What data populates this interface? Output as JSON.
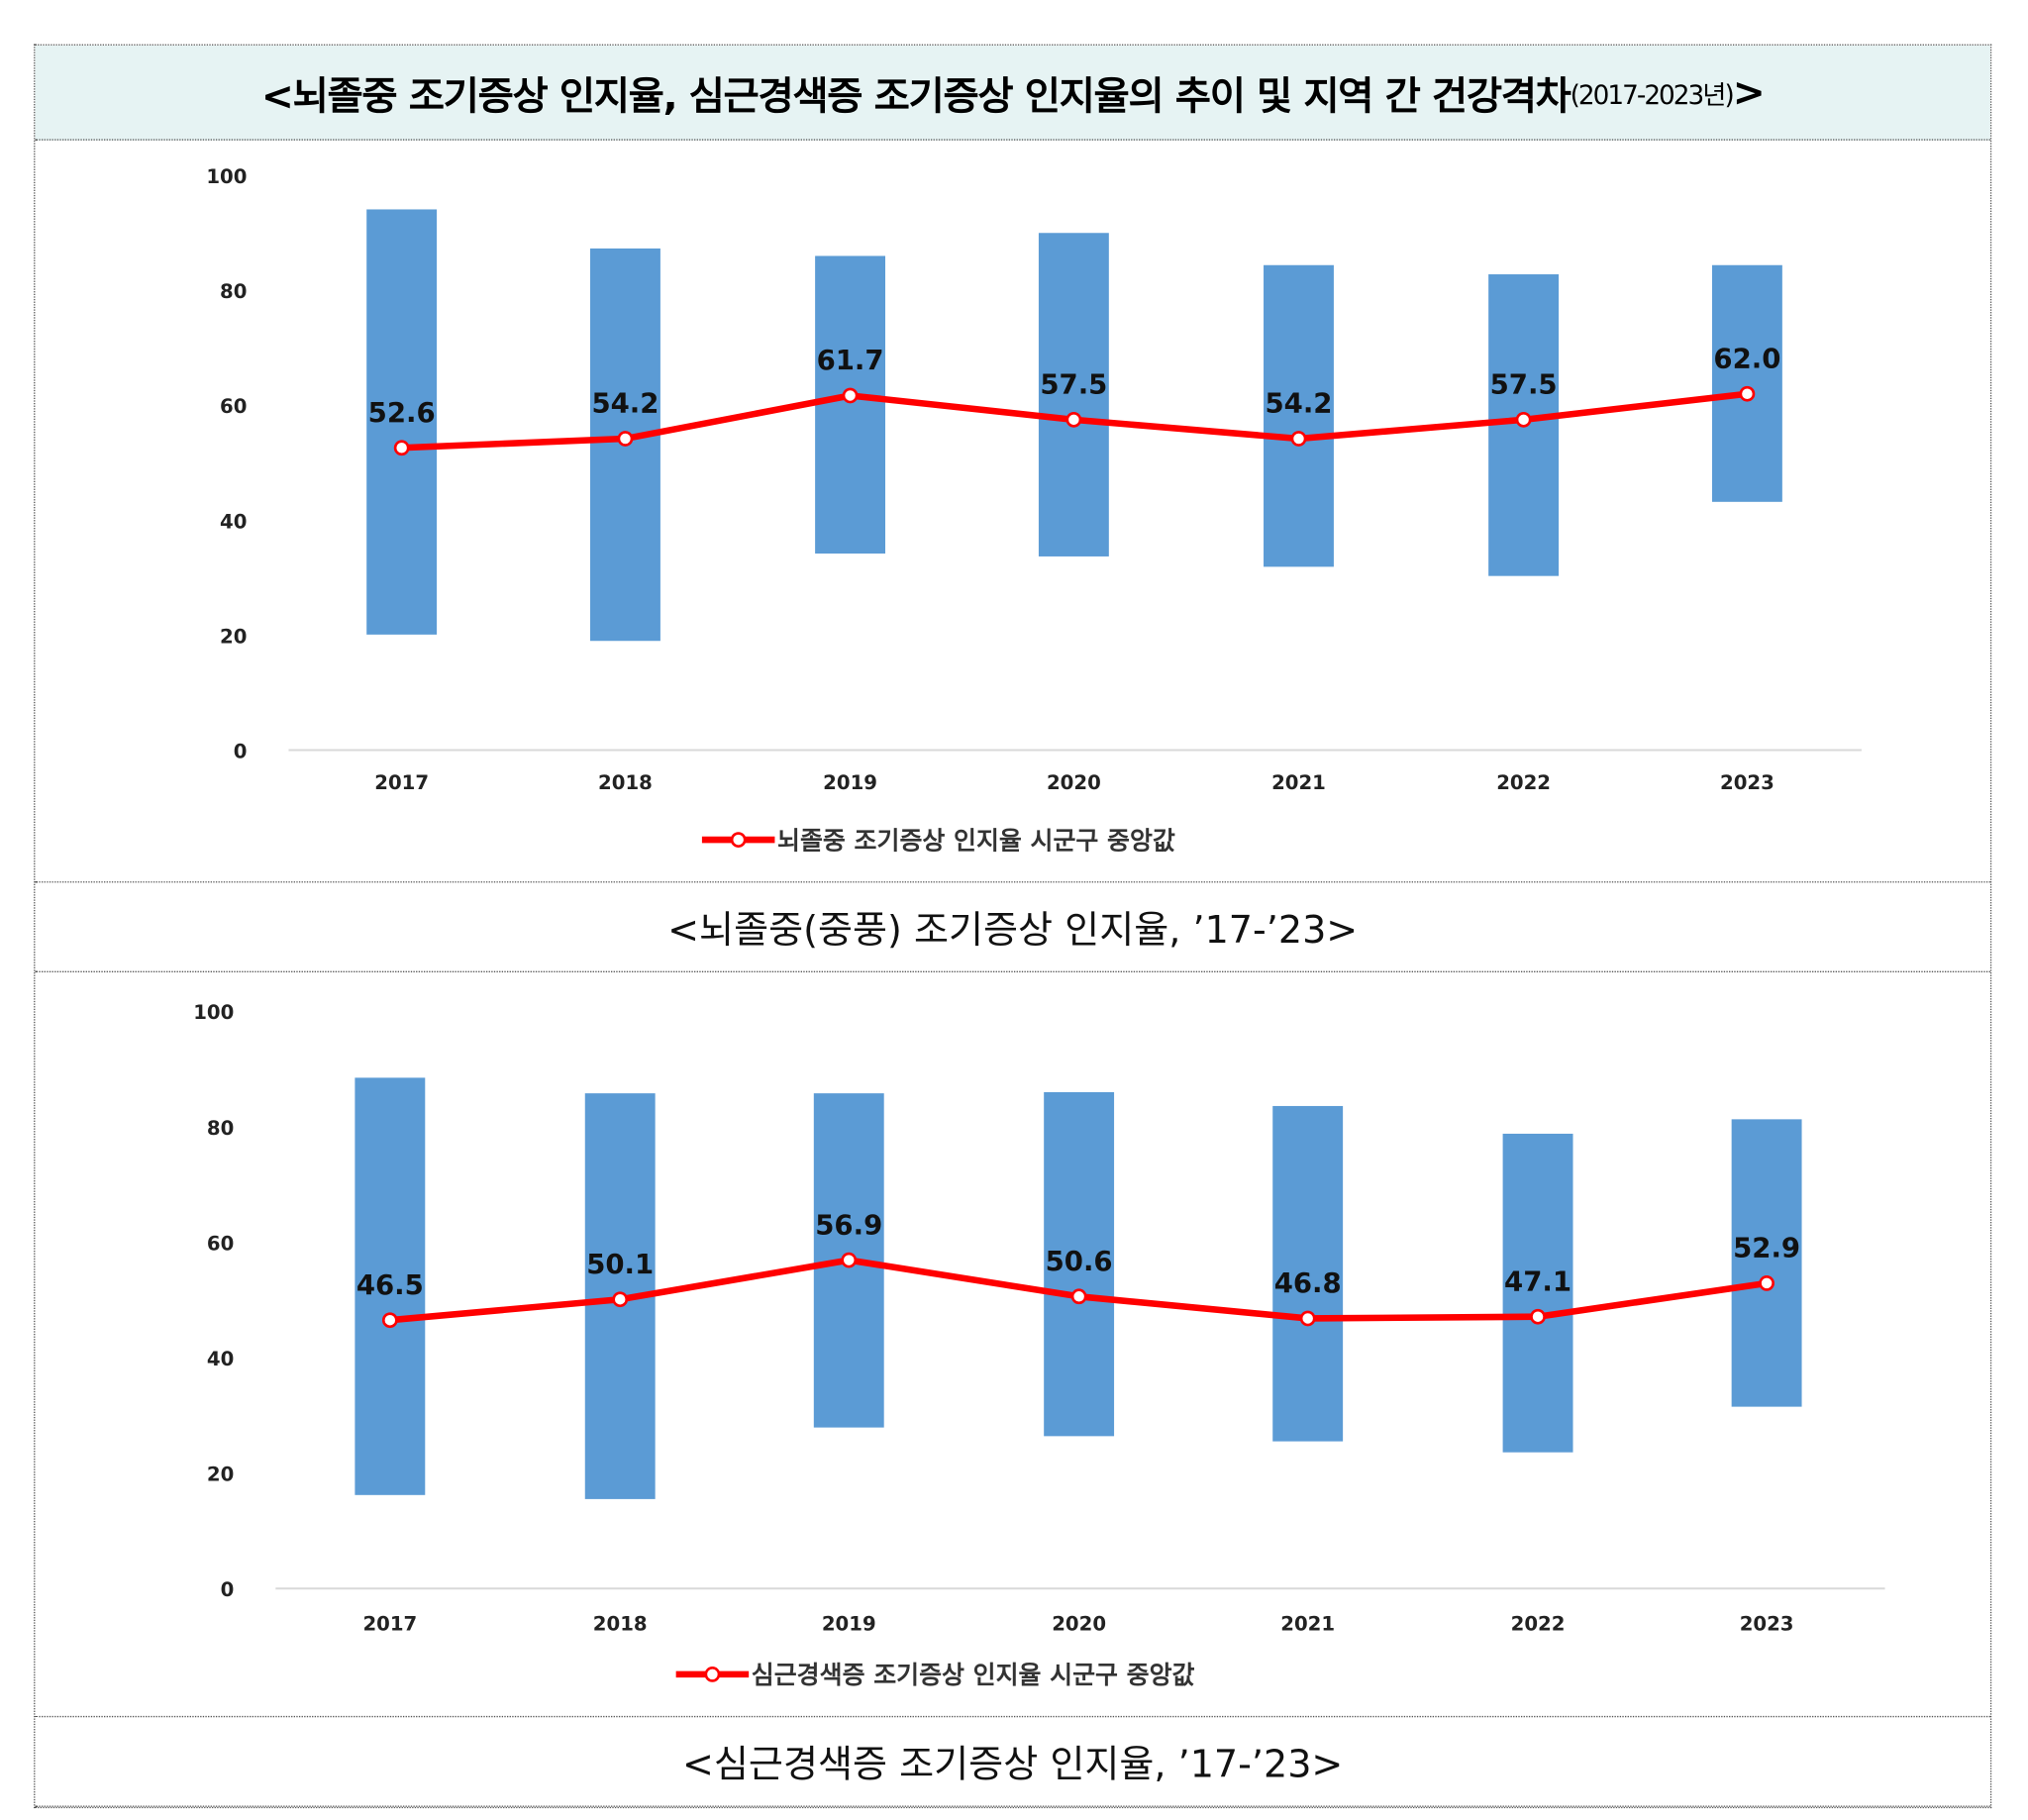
{
  "title": {
    "main": "<뇌졸중 조기증상 인지율, 심근경색증 조기증상 인지율의 추이 및 지역 간 건강격차",
    "years": "(2017-2023년)",
    "close": ">"
  },
  "captions": [
    "<뇌졸중(중풍) 조기증상 인지율, ’17-’23>",
    "<심근경색증 조기증상 인지율, ’17-’23>"
  ],
  "colors": {
    "bar": "#5b9bd5",
    "line": "#ff0000",
    "title_bg": "#e6f3f3"
  },
  "chart_data": [
    {
      "type": "bar+line",
      "categories": [
        "2017",
        "2018",
        "2019",
        "2020",
        "2021",
        "2022",
        "2023"
      ],
      "ylim": [
        0,
        100
      ],
      "yticks": [
        0,
        20,
        40,
        60,
        80,
        100
      ],
      "range_bars": {
        "low": [
          20.1,
          19.0,
          34.2,
          33.7,
          31.9,
          30.3,
          43.2
        ],
        "high": [
          94.1,
          87.3,
          86.0,
          90.0,
          84.4,
          82.8,
          84.4
        ]
      },
      "series": [
        {
          "name": "뇌졸중 조기증상 인지율 시군구 중앙값",
          "values": [
            52.6,
            54.2,
            61.7,
            57.5,
            54.2,
            57.5,
            62.0
          ],
          "labels": [
            "52.6",
            "54.2",
            "61.7",
            "57.5",
            "54.2",
            "57.5",
            "62.0"
          ]
        }
      ],
      "legend": "bottom",
      "grid": false
    },
    {
      "type": "bar+line",
      "categories": [
        "2017",
        "2018",
        "2019",
        "2020",
        "2021",
        "2022",
        "2023"
      ],
      "ylim": [
        0,
        100
      ],
      "yticks": [
        0,
        20,
        40,
        60,
        80,
        100
      ],
      "range_bars": {
        "low": [
          16.2,
          15.5,
          27.9,
          26.4,
          25.5,
          23.6,
          31.5
        ],
        "high": [
          88.5,
          85.8,
          85.8,
          86.0,
          83.6,
          78.8,
          81.3
        ]
      },
      "series": [
        {
          "name": "심근경색증 조기증상 인지율 시군구 중앙값",
          "values": [
            46.5,
            50.1,
            56.9,
            50.6,
            46.8,
            47.1,
            52.9
          ],
          "labels": [
            "46.5",
            "50.1",
            "56.9",
            "50.6",
            "46.8",
            "47.1",
            "52.9"
          ]
        }
      ],
      "legend": "bottom",
      "grid": false
    }
  ]
}
